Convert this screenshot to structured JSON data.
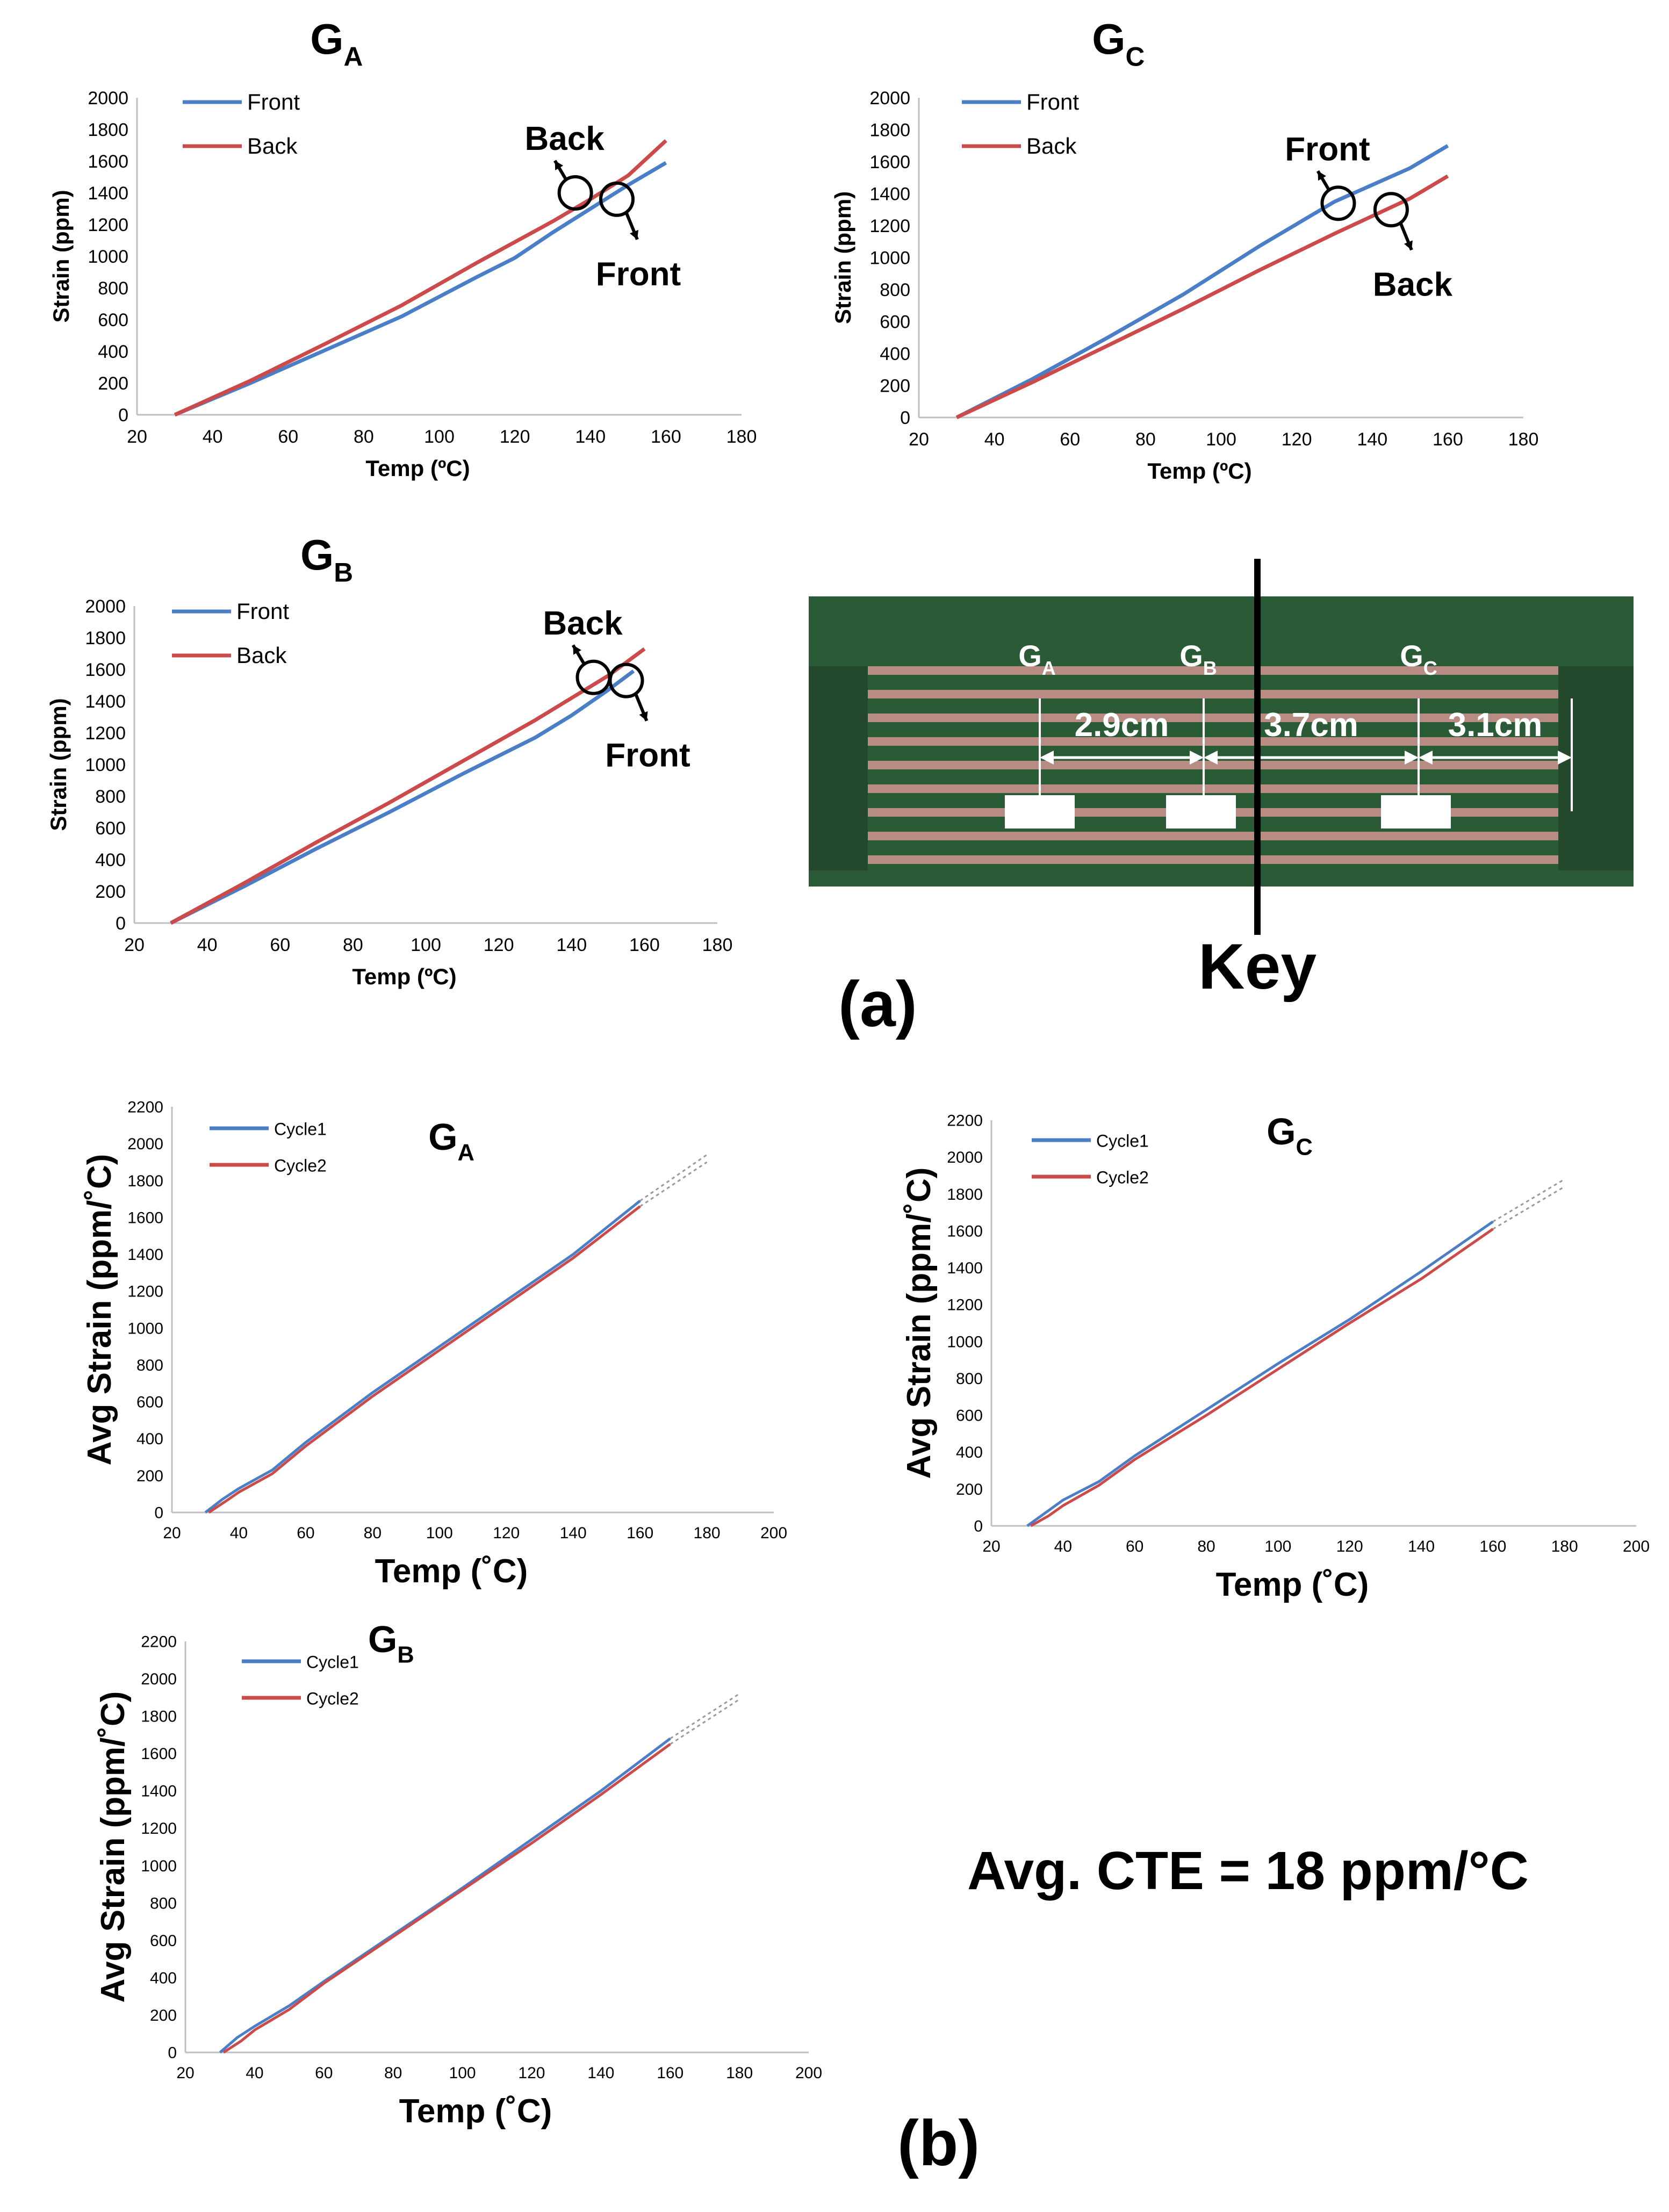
{
  "panel_labels": {
    "a": "(a)",
    "b": "(b)"
  },
  "cte_note": "Avg. CTE = 18 ppm/°C",
  "key": {
    "title": "Key",
    "gauges": [
      {
        "main": "G",
        "sub": "A"
      },
      {
        "main": "G",
        "sub": "B"
      },
      {
        "main": "G",
        "sub": "C"
      }
    ],
    "distances": [
      "2.9cm",
      "3.7cm",
      "3.1cm"
    ],
    "colors": {
      "board": "#2a5a36",
      "trace": "#b88c82",
      "arrow": "#ffffff",
      "divider": "#000000"
    }
  },
  "colors": {
    "front": "#4a7fc8",
    "back": "#cc4a4a",
    "cycle1": "#4a7fc8",
    "cycle2": "#cc4a4a",
    "fit": "#9a9a9a"
  },
  "chart_data": [
    {
      "id": "a-GA",
      "type": "line",
      "title_main": "G",
      "title_sub": "A",
      "xlabel": "Temp (ºC)",
      "ylabel": "Strain (ppm)",
      "xlim": [
        20,
        180
      ],
      "ylim": [
        0,
        2000
      ],
      "xticks": [
        20,
        40,
        60,
        80,
        100,
        120,
        140,
        160,
        180
      ],
      "yticks": [
        0,
        200,
        400,
        600,
        800,
        1000,
        1200,
        1400,
        1600,
        1800,
        2000
      ],
      "legend": "top-left",
      "series": [
        {
          "name": "Front",
          "color_key": "front",
          "x": [
            30,
            50,
            70,
            90,
            110,
            120,
            130,
            140,
            150,
            160
          ],
          "y": [
            0,
            200,
            410,
            620,
            870,
            990,
            1150,
            1300,
            1450,
            1590
          ]
        },
        {
          "name": "Back",
          "color_key": "back",
          "x": [
            30,
            50,
            70,
            90,
            110,
            130,
            140,
            150,
            160
          ],
          "y": [
            0,
            215,
            450,
            690,
            960,
            1220,
            1360,
            1510,
            1730
          ]
        }
      ],
      "annotations": [
        {
          "text": "Back",
          "x": 136,
          "y": 1400,
          "dir": "up-left"
        },
        {
          "text": "Front",
          "x": 147,
          "y": 1360,
          "dir": "down-right"
        }
      ]
    },
    {
      "id": "a-GC",
      "type": "line",
      "title_main": "G",
      "title_sub": "C",
      "xlabel": "Temp (ºC)",
      "ylabel": "Strain (ppm)",
      "xlim": [
        20,
        180
      ],
      "ylim": [
        0,
        2000
      ],
      "xticks": [
        20,
        40,
        60,
        80,
        100,
        120,
        140,
        160,
        180
      ],
      "yticks": [
        0,
        200,
        400,
        600,
        800,
        1000,
        1200,
        1400,
        1600,
        1800,
        2000
      ],
      "legend": "top-left",
      "series": [
        {
          "name": "Front",
          "color_key": "front",
          "x": [
            30,
            50,
            70,
            90,
            110,
            130,
            150,
            160
          ],
          "y": [
            0,
            240,
            500,
            770,
            1070,
            1350,
            1560,
            1700
          ]
        },
        {
          "name": "Back",
          "color_key": "back",
          "x": [
            30,
            50,
            70,
            90,
            110,
            130,
            150,
            160
          ],
          "y": [
            0,
            220,
            450,
            680,
            920,
            1150,
            1370,
            1510
          ]
        }
      ],
      "annotations": [
        {
          "text": "Front",
          "x": 131,
          "y": 1340,
          "dir": "up-left"
        },
        {
          "text": "Back",
          "x": 145,
          "y": 1300,
          "dir": "down-right"
        }
      ]
    },
    {
      "id": "a-GB",
      "type": "line",
      "title_main": "G",
      "title_sub": "B",
      "xlabel": "Temp (ºC)",
      "ylabel": "Strain (ppm)",
      "xlim": [
        20,
        180
      ],
      "ylim": [
        0,
        2000
      ],
      "xticks": [
        20,
        40,
        60,
        80,
        100,
        120,
        140,
        160,
        180
      ],
      "yticks": [
        0,
        200,
        400,
        600,
        800,
        1000,
        1200,
        1400,
        1600,
        1800,
        2000
      ],
      "legend": "top-left",
      "series": [
        {
          "name": "Front",
          "color_key": "front",
          "x": [
            30,
            50,
            70,
            90,
            110,
            130,
            140,
            150,
            157
          ],
          "y": [
            0,
            230,
            470,
            700,
            940,
            1170,
            1310,
            1470,
            1590
          ]
        },
        {
          "name": "Back",
          "color_key": "back",
          "x": [
            30,
            50,
            70,
            90,
            110,
            130,
            150,
            160
          ],
          "y": [
            0,
            250,
            510,
            760,
            1020,
            1280,
            1560,
            1730
          ]
        }
      ],
      "annotations": [
        {
          "text": "Back",
          "x": 146,
          "y": 1550,
          "dir": "up-left"
        },
        {
          "text": "Front",
          "x": 155,
          "y": 1530,
          "dir": "down-right"
        }
      ]
    },
    {
      "id": "b-GA",
      "type": "line",
      "title_main": "G",
      "title_sub": "A",
      "xlabel": "Temp (˚C)",
      "ylabel": "Avg Strain (ppm/˚C)",
      "xlim": [
        20,
        200
      ],
      "ylim": [
        0,
        2200
      ],
      "xticks": [
        20,
        40,
        60,
        80,
        100,
        120,
        140,
        160,
        180,
        200
      ],
      "yticks": [
        0,
        200,
        400,
        600,
        800,
        1000,
        1200,
        1400,
        1600,
        1800,
        2000,
        2200
      ],
      "legend": "top-left",
      "series": [
        {
          "name": "Cycle1",
          "color_key": "cycle1",
          "x": [
            30,
            35,
            40,
            50,
            60,
            80,
            100,
            120,
            140,
            160
          ],
          "y": [
            0,
            70,
            130,
            230,
            380,
            650,
            900,
            1150,
            1400,
            1690
          ]
        },
        {
          "name": "Cycle2",
          "color_key": "cycle2",
          "x": [
            31,
            36,
            40,
            50,
            60,
            80,
            100,
            120,
            140,
            160
          ],
          "y": [
            0,
            60,
            110,
            210,
            360,
            630,
            880,
            1130,
            1380,
            1660
          ]
        }
      ],
      "trend": [
        {
          "x": [
            160,
            180
          ],
          "y": [
            1690,
            1940
          ]
        },
        {
          "x": [
            160,
            180
          ],
          "y": [
            1660,
            1900
          ]
        }
      ]
    },
    {
      "id": "b-GC",
      "type": "line",
      "title_main": "G",
      "title_sub": "C",
      "xlabel": "Temp (˚C)",
      "ylabel": "Avg Strain (ppm/˚C)",
      "xlim": [
        20,
        200
      ],
      "ylim": [
        0,
        2200
      ],
      "xticks": [
        20,
        40,
        60,
        80,
        100,
        120,
        140,
        160,
        180,
        200
      ],
      "yticks": [
        0,
        200,
        400,
        600,
        800,
        1000,
        1200,
        1400,
        1600,
        1800,
        2000,
        2200
      ],
      "legend": "top-left",
      "series": [
        {
          "name": "Cycle1",
          "color_key": "cycle1",
          "x": [
            30,
            35,
            40,
            50,
            60,
            80,
            100,
            120,
            140,
            160
          ],
          "y": [
            0,
            70,
            140,
            240,
            380,
            630,
            880,
            1120,
            1380,
            1650
          ]
        },
        {
          "name": "Cycle2",
          "color_key": "cycle2",
          "x": [
            31,
            36,
            40,
            50,
            60,
            80,
            100,
            120,
            140,
            160
          ],
          "y": [
            0,
            55,
            110,
            220,
            360,
            600,
            850,
            1100,
            1340,
            1610
          ]
        }
      ],
      "trend": [
        {
          "x": [
            160,
            180
          ],
          "y": [
            1650,
            1880
          ]
        },
        {
          "x": [
            160,
            180
          ],
          "y": [
            1610,
            1840
          ]
        }
      ]
    },
    {
      "id": "b-GB",
      "type": "line",
      "title_main": "G",
      "title_sub": "B",
      "xlabel": "Temp (˚C)",
      "ylabel": "Avg Strain (ppm/˚C)",
      "xlim": [
        20,
        200
      ],
      "ylim": [
        0,
        2200
      ],
      "xticks": [
        20,
        40,
        60,
        80,
        100,
        120,
        140,
        160,
        180,
        200
      ],
      "yticks": [
        0,
        200,
        400,
        600,
        800,
        1000,
        1200,
        1400,
        1600,
        1800,
        2000,
        2200
      ],
      "legend": "top-left",
      "series": [
        {
          "name": "Cycle1",
          "color_key": "cycle1",
          "x": [
            30,
            35,
            40,
            50,
            60,
            80,
            100,
            120,
            140,
            160
          ],
          "y": [
            0,
            80,
            140,
            250,
            380,
            630,
            880,
            1140,
            1400,
            1680
          ]
        },
        {
          "name": "Cycle2",
          "color_key": "cycle2",
          "x": [
            31,
            36,
            40,
            50,
            60,
            80,
            100,
            120,
            140,
            160
          ],
          "y": [
            0,
            60,
            120,
            230,
            370,
            620,
            870,
            1120,
            1380,
            1650
          ]
        }
      ],
      "trend": [
        {
          "x": [
            160,
            180
          ],
          "y": [
            1680,
            1920
          ]
        },
        {
          "x": [
            160,
            180
          ],
          "y": [
            1650,
            1890
          ]
        }
      ]
    }
  ]
}
